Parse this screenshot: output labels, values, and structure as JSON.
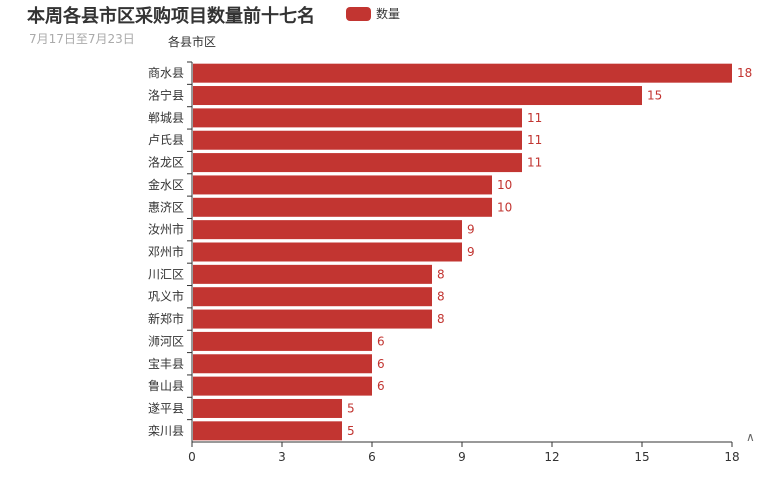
{
  "title": "本周各县市区采购项目数量前十七名",
  "subtitle": "7月17日至7月23日",
  "legend_label": "数量",
  "colors": {
    "bar": "#c23531",
    "axis": "#333333",
    "grid": "#e0e0e0",
    "label": "#c23531"
  },
  "chart_data": {
    "type": "bar",
    "orientation": "horizontal",
    "ylabel": "各县市区",
    "categories": [
      "商水县",
      "洛宁县",
      "郸城县",
      "卢氏县",
      "洛龙区",
      "金水区",
      "惠济区",
      "汝州市",
      "邓州市",
      "川汇区",
      "巩义市",
      "新郑市",
      "浉河区",
      "宝丰县",
      "鲁山县",
      "遂平县",
      "栾川县"
    ],
    "series": [
      {
        "name": "数量",
        "values": [
          18,
          15,
          11,
          11,
          11,
          10,
          10,
          9,
          9,
          8,
          8,
          8,
          6,
          6,
          6,
          5,
          5
        ]
      }
    ],
    "xlim": [
      0,
      18
    ],
    "xticks": [
      0,
      3,
      6,
      9,
      12,
      15,
      18
    ],
    "grid": false,
    "legend_position": "top",
    "data_labels": true
  },
  "scroll_icon": "up-arrow-icon"
}
